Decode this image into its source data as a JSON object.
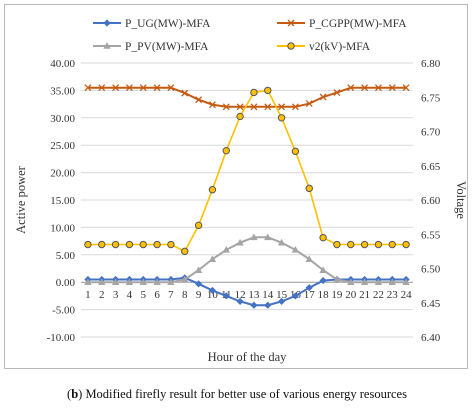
{
  "chart_data": {
    "type": "line",
    "x": [
      1,
      2,
      3,
      4,
      5,
      6,
      7,
      8,
      9,
      10,
      11,
      12,
      13,
      14,
      15,
      16,
      17,
      18,
      19,
      20,
      21,
      22,
      23,
      24
    ],
    "xlabel": "Hour of the day",
    "ylabel": "Active power",
    "y2label": "Voltage",
    "ylim": [
      -10,
      40
    ],
    "y2lim": [
      6.4,
      6.8
    ],
    "yticks": [
      "40.00",
      "35.00",
      "30.00",
      "25.00",
      "20.00",
      "15.00",
      "10.00",
      "5.00",
      "0.00",
      "-5.00",
      "-10.00"
    ],
    "y2ticks": [
      "6.80",
      "6.75",
      "6.70",
      "6.65",
      "6.60",
      "6.55",
      "6.50",
      "6.45",
      "6.40"
    ],
    "grid": true,
    "legend_position": "top",
    "series": [
      {
        "name": "P_UG(MW)-MFA",
        "axis": "left",
        "color": "#4472C4",
        "marker": "diamond",
        "values": [
          0.5,
          0.5,
          0.5,
          0.5,
          0.5,
          0.5,
          0.5,
          0.8,
          -0.3,
          -1.5,
          -2.5,
          -3.5,
          -4.2,
          -4.2,
          -3.5,
          -2.5,
          -1.0,
          0.3,
          0.5,
          0.5,
          0.5,
          0.5,
          0.5,
          0.5
        ]
      },
      {
        "name": "P_CGPP(MW)-MFA",
        "axis": "left",
        "color": "#C55A11",
        "marker": "x",
        "values": [
          35.5,
          35.5,
          35.5,
          35.5,
          35.5,
          35.5,
          35.5,
          34.5,
          33.3,
          32.4,
          32.0,
          32.0,
          32.0,
          32.0,
          32.0,
          32.0,
          32.6,
          33.8,
          34.6,
          35.5,
          35.5,
          35.5,
          35.5,
          35.5
        ]
      },
      {
        "name": "P_PV(MW)-MFA",
        "axis": "left",
        "color": "#A5A5A5",
        "marker": "triangle",
        "values": [
          0,
          0,
          0,
          0,
          0,
          0,
          0,
          0.5,
          2.2,
          4.2,
          5.9,
          7.2,
          8.2,
          8.2,
          7.2,
          5.9,
          4.2,
          2.2,
          0.5,
          0,
          0,
          0,
          0,
          0
        ]
      },
      {
        "name": "v2(kV)-MFA",
        "axis": "right",
        "color": "#FFC000",
        "marker": "circle",
        "values": [
          6.535,
          6.535,
          6.535,
          6.535,
          6.535,
          6.535,
          6.535,
          6.525,
          6.563,
          6.615,
          6.672,
          6.722,
          6.757,
          6.76,
          6.72,
          6.671,
          6.617,
          6.545,
          6.535,
          6.535,
          6.535,
          6.535,
          6.535,
          6.535
        ]
      }
    ]
  },
  "caption": {
    "label": "b",
    "text": " Modified firefly result for better use of various energy resources"
  }
}
